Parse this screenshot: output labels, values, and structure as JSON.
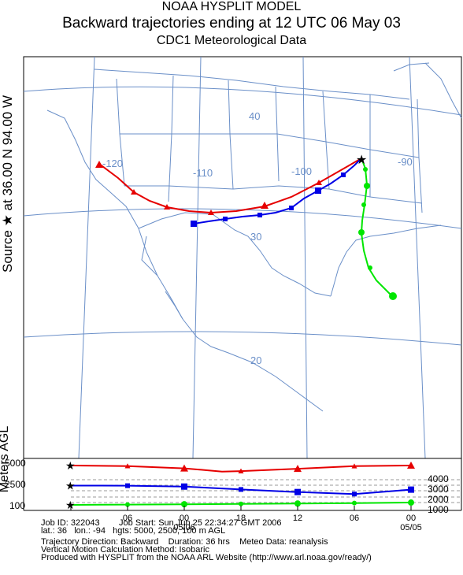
{
  "header": {
    "title1": "NOAA HYSPLIT MODEL",
    "title2": "Backward trajectories ending at 12 UTC 06 May 03",
    "title3": "CDC1 Meteorological Data"
  },
  "side_label": "Source ★ at   36.00 N   94.00 W",
  "map": {
    "lon_labels": [
      "-120",
      "-110",
      "-100",
      "-90"
    ],
    "lat_labels": [
      "40",
      "30",
      "20"
    ],
    "colors": {
      "red": "#e60000",
      "blue": "#0000e6",
      "green": "#00e600",
      "map": "#6a8fc8"
    }
  },
  "chart_data": {
    "type": "line",
    "ylabel": "Meters AGL",
    "y_left_ticks": [
      "5000",
      "2500",
      "100"
    ],
    "y_right_ticks": [
      "4000",
      "3000",
      "2000",
      "1000"
    ],
    "x_tick_labels": [
      "06",
      "00",
      "18",
      "12",
      "06",
      "00"
    ],
    "x_date_labels": [
      "05/06",
      "05/05"
    ],
    "x_hours_before_end": [
      0,
      6,
      12,
      18,
      24,
      30,
      36
    ],
    "series": [
      {
        "color": "red",
        "start_height_m": 5000,
        "hours": [
          0,
          6,
          12,
          16,
          18,
          24,
          30,
          36
        ],
        "heights": [
          5000,
          4930,
          4650,
          4250,
          4300,
          4600,
          4920,
          5000
        ]
      },
      {
        "color": "blue",
        "start_height_m": 2500,
        "hours": [
          0,
          6,
          12,
          18,
          24,
          30,
          36
        ],
        "heights": [
          2500,
          2490,
          2380,
          2020,
          1700,
          1450,
          2000
        ]
      },
      {
        "color": "green",
        "start_height_m": 100,
        "hours": [
          0,
          6,
          12,
          18,
          24,
          30,
          36
        ],
        "heights": [
          100,
          140,
          180,
          220,
          270,
          330,
          390
        ]
      }
    ]
  },
  "info": {
    "line1": "Job ID: 322043        Job Start: Sun Jun 25 22:34:27 GMT 2006",
    "line2": "lat.: 36   lon.: -94   hgts: 5000, 2500, 100 m AGL",
    "line3": "Trajectory Direction: Backward    Duration: 36 hrs    Meteo Data: reanalysis",
    "line4": "Vertical Motion Calculation Method: Isobaric",
    "line5": "Produced with HYSPLIT from the NOAA ARL Website (http://www.arl.noaa.gov/ready/)"
  }
}
